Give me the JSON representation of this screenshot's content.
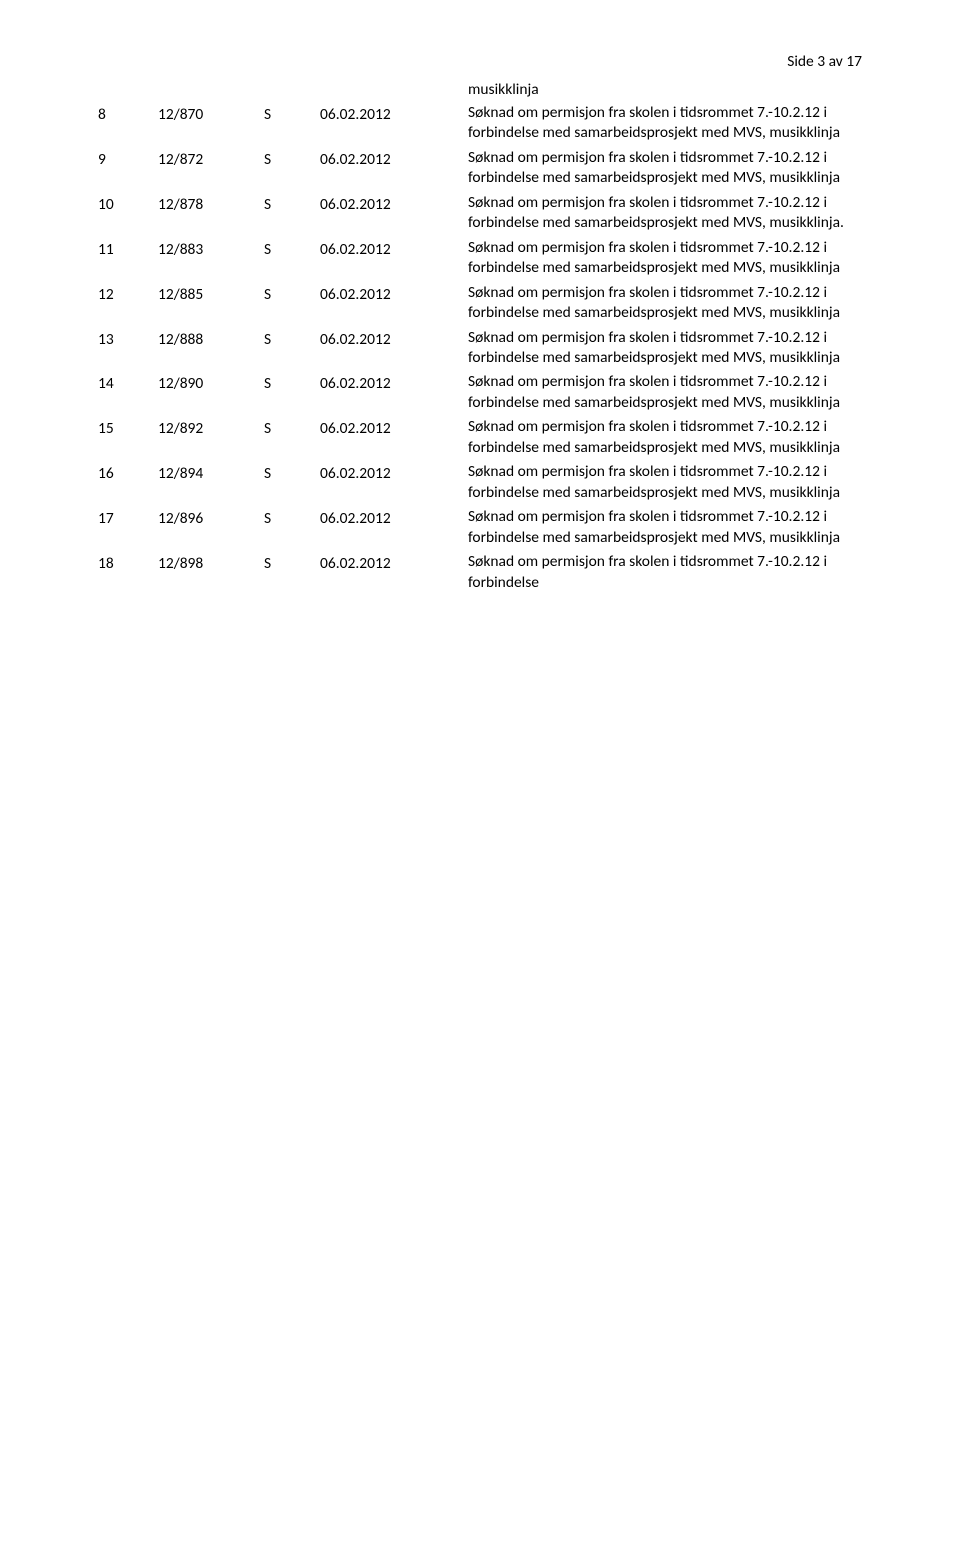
{
  "pageNumber": "Side 3 av 17",
  "prelude": "musikklinja",
  "rows": [
    {
      "n": "8",
      "ref": "12/870",
      "code": "S",
      "date": "06.02.2012",
      "text": "Søknad om permisjon fra skolen i tidsrommet 7.-10.2.12 i forbindelse med samarbeidsprosjekt med MVS, musikklinja"
    },
    {
      "n": "9",
      "ref": "12/872",
      "code": "S",
      "date": "06.02.2012",
      "text": "Søknad om permisjon fra skolen i tidsrommet 7.-10.2.12 i forbindelse med samarbeidsprosjekt med MVS, musikklinja"
    },
    {
      "n": "10",
      "ref": "12/878",
      "code": "S",
      "date": "06.02.2012",
      "text": "Søknad om permisjon fra skolen i tidsrommet 7.-10.2.12 i forbindelse med samarbeidsprosjekt med MVS, musikklinja."
    },
    {
      "n": "11",
      "ref": "12/883",
      "code": "S",
      "date": "06.02.2012",
      "text": "Søknad om permisjon fra skolen i tidsrommet 7.-10.2.12 i forbindelse med samarbeidsprosjekt med MVS, musikklinja"
    },
    {
      "n": "12",
      "ref": "12/885",
      "code": "S",
      "date": "06.02.2012",
      "text": "Søknad om permisjon fra skolen i tidsrommet 7.-10.2.12 i forbindelse med samarbeidsprosjekt med MVS, musikklinja"
    },
    {
      "n": "13",
      "ref": "12/888",
      "code": "S",
      "date": "06.02.2012",
      "text": "Søknad om permisjon fra skolen i tidsrommet 7.-10.2.12 i forbindelse med samarbeidsprosjekt med MVS, musikklinja"
    },
    {
      "n": "14",
      "ref": "12/890",
      "code": "S",
      "date": "06.02.2012",
      "text": "Søknad om permisjon fra skolen i tidsrommet 7.-10.2.12 i forbindelse med samarbeidsprosjekt med MVS, musikklinja"
    },
    {
      "n": "15",
      "ref": "12/892",
      "code": "S",
      "date": "06.02.2012",
      "text": "Søknad om permisjon fra skolen i tidsrommet 7.-10.2.12 i forbindelse med samarbeidsprosjekt med MVS, musikklinja"
    },
    {
      "n": "16",
      "ref": "12/894",
      "code": "S",
      "date": "06.02.2012",
      "text": "Søknad om permisjon fra skolen i tidsrommet 7.-10.2.12 i forbindelse med samarbeidsprosjekt med MVS, musikklinja"
    },
    {
      "n": "17",
      "ref": "12/896",
      "code": "S",
      "date": "06.02.2012",
      "text": "Søknad om permisjon fra skolen i tidsrommet 7.-10.2.12 i forbindelse med samarbeidsprosjekt med MVS, musikklinja"
    },
    {
      "n": "18",
      "ref": "12/898",
      "code": "S",
      "date": "06.02.2012",
      "text": "Søknad om permisjon fra skolen i tidsrommet 7.-10.2.12 i forbindelse"
    }
  ],
  "colors": {
    "background": "#ffffff",
    "text": "#000000"
  },
  "typography": {
    "fontFamily": "Calibri",
    "fontSizePt": 11,
    "lineHeight": 1.32
  }
}
